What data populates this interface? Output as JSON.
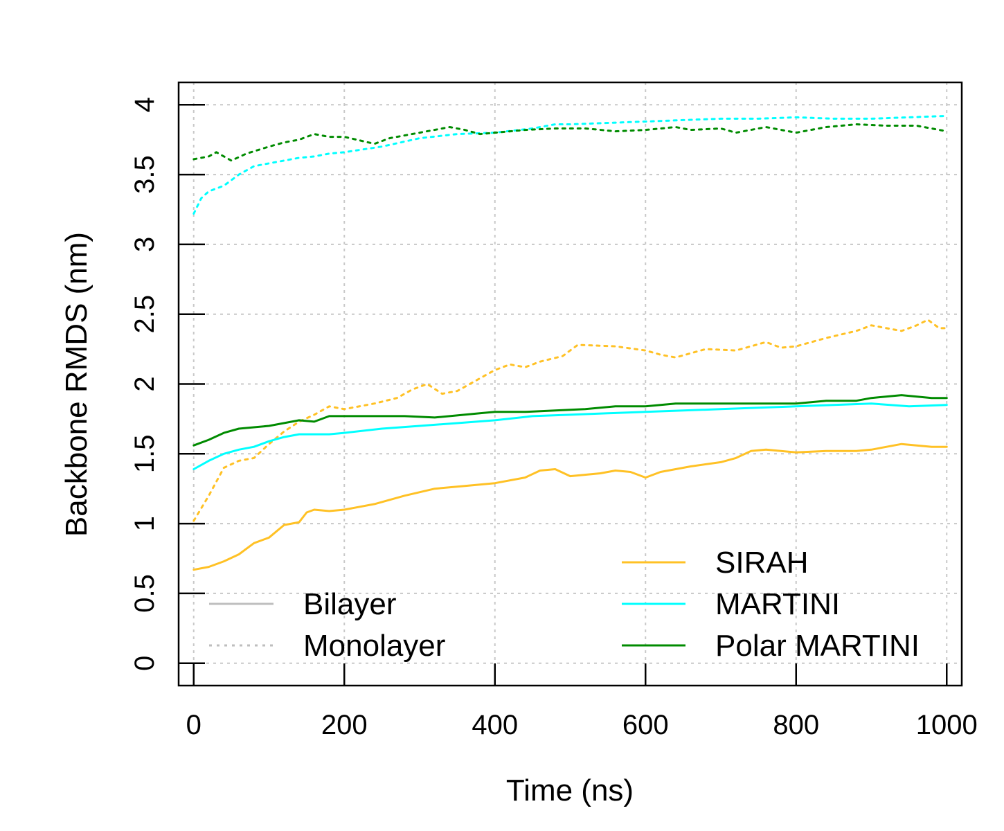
{
  "chart_data": {
    "type": "line",
    "xlabel": "Time (ns)",
    "ylabel": "Backbone RMDS (nm)",
    "xlim": [
      -20,
      1020
    ],
    "ylim": [
      -0.16,
      4.16
    ],
    "xticks": [
      0,
      200,
      400,
      600,
      800,
      1000
    ],
    "yticks": [
      0,
      0.5,
      1,
      1.5,
      2,
      2.5,
      3,
      3.5,
      4
    ],
    "grid": true,
    "legends": [
      {
        "placement": "bottom-left",
        "entries": [
          {
            "label": "Bilayer",
            "style": "solid",
            "color": "#bebebe"
          },
          {
            "label": "Monolayer",
            "style": "dotted",
            "color": "#bebebe"
          }
        ]
      },
      {
        "placement": "bottom-right",
        "entries": [
          {
            "label": "SIRAH",
            "style": "solid",
            "color": "#ffc125"
          },
          {
            "label": "MARTINI",
            "style": "solid",
            "color": "#00ffff"
          },
          {
            "label": "Polar MARTINI",
            "style": "solid",
            "color": "#008b00"
          }
        ]
      }
    ],
    "series": [
      {
        "model": "SIRAH",
        "layer": "Bilayer",
        "color": "#ffc125",
        "style": "solid",
        "points": [
          [
            0,
            0.67
          ],
          [
            20,
            0.69
          ],
          [
            40,
            0.73
          ],
          [
            60,
            0.78
          ],
          [
            80,
            0.86
          ],
          [
            100,
            0.9
          ],
          [
            120,
            0.99
          ],
          [
            140,
            1.01
          ],
          [
            150,
            1.08
          ],
          [
            160,
            1.1
          ],
          [
            180,
            1.09
          ],
          [
            200,
            1.1
          ],
          [
            240,
            1.14
          ],
          [
            280,
            1.2
          ],
          [
            320,
            1.25
          ],
          [
            360,
            1.27
          ],
          [
            400,
            1.29
          ],
          [
            440,
            1.33
          ],
          [
            460,
            1.38
          ],
          [
            480,
            1.39
          ],
          [
            500,
            1.34
          ],
          [
            540,
            1.36
          ],
          [
            560,
            1.38
          ],
          [
            580,
            1.37
          ],
          [
            600,
            1.33
          ],
          [
            620,
            1.37
          ],
          [
            660,
            1.41
          ],
          [
            700,
            1.44
          ],
          [
            720,
            1.47
          ],
          [
            740,
            1.52
          ],
          [
            760,
            1.53
          ],
          [
            800,
            1.51
          ],
          [
            840,
            1.52
          ],
          [
            880,
            1.52
          ],
          [
            900,
            1.53
          ],
          [
            940,
            1.57
          ],
          [
            960,
            1.56
          ],
          [
            980,
            1.55
          ],
          [
            1000,
            1.55
          ]
        ]
      },
      {
        "model": "SIRAH",
        "layer": "Monolayer",
        "color": "#ffc125",
        "style": "dotted",
        "points": [
          [
            0,
            1.02
          ],
          [
            20,
            1.2
          ],
          [
            40,
            1.4
          ],
          [
            60,
            1.45
          ],
          [
            80,
            1.47
          ],
          [
            100,
            1.57
          ],
          [
            120,
            1.66
          ],
          [
            140,
            1.73
          ],
          [
            160,
            1.78
          ],
          [
            180,
            1.84
          ],
          [
            200,
            1.82
          ],
          [
            240,
            1.86
          ],
          [
            270,
            1.9
          ],
          [
            290,
            1.96
          ],
          [
            310,
            2.0
          ],
          [
            330,
            1.93
          ],
          [
            350,
            1.95
          ],
          [
            380,
            2.04
          ],
          [
            400,
            2.1
          ],
          [
            420,
            2.14
          ],
          [
            440,
            2.12
          ],
          [
            460,
            2.16
          ],
          [
            490,
            2.2
          ],
          [
            510,
            2.28
          ],
          [
            560,
            2.27
          ],
          [
            600,
            2.24
          ],
          [
            620,
            2.21
          ],
          [
            640,
            2.19
          ],
          [
            660,
            2.22
          ],
          [
            680,
            2.25
          ],
          [
            720,
            2.24
          ],
          [
            760,
            2.3
          ],
          [
            780,
            2.26
          ],
          [
            800,
            2.27
          ],
          [
            840,
            2.33
          ],
          [
            880,
            2.38
          ],
          [
            900,
            2.42
          ],
          [
            920,
            2.4
          ],
          [
            940,
            2.38
          ],
          [
            960,
            2.42
          ],
          [
            975,
            2.46
          ],
          [
            990,
            2.4
          ],
          [
            1000,
            2.4
          ]
        ]
      },
      {
        "model": "MARTINI",
        "layer": "Bilayer",
        "color": "#00ffff",
        "style": "solid",
        "points": [
          [
            0,
            1.39
          ],
          [
            20,
            1.45
          ],
          [
            40,
            1.5
          ],
          [
            60,
            1.53
          ],
          [
            80,
            1.55
          ],
          [
            100,
            1.59
          ],
          [
            120,
            1.62
          ],
          [
            140,
            1.64
          ],
          [
            160,
            1.64
          ],
          [
            180,
            1.64
          ],
          [
            200,
            1.65
          ],
          [
            250,
            1.68
          ],
          [
            300,
            1.7
          ],
          [
            350,
            1.72
          ],
          [
            400,
            1.74
          ],
          [
            450,
            1.77
          ],
          [
            500,
            1.78
          ],
          [
            550,
            1.79
          ],
          [
            600,
            1.8
          ],
          [
            650,
            1.81
          ],
          [
            700,
            1.82
          ],
          [
            750,
            1.83
          ],
          [
            800,
            1.84
          ],
          [
            850,
            1.85
          ],
          [
            900,
            1.86
          ],
          [
            950,
            1.84
          ],
          [
            1000,
            1.85
          ]
        ]
      },
      {
        "model": "Polar MARTINI",
        "layer": "Bilayer",
        "color": "#008b00",
        "style": "solid",
        "points": [
          [
            0,
            1.56
          ],
          [
            20,
            1.6
          ],
          [
            40,
            1.65
          ],
          [
            60,
            1.68
          ],
          [
            80,
            1.69
          ],
          [
            100,
            1.7
          ],
          [
            140,
            1.74
          ],
          [
            160,
            1.73
          ],
          [
            180,
            1.77
          ],
          [
            200,
            1.77
          ],
          [
            240,
            1.77
          ],
          [
            280,
            1.77
          ],
          [
            320,
            1.76
          ],
          [
            340,
            1.77
          ],
          [
            380,
            1.79
          ],
          [
            400,
            1.8
          ],
          [
            440,
            1.8
          ],
          [
            480,
            1.81
          ],
          [
            520,
            1.82
          ],
          [
            560,
            1.84
          ],
          [
            600,
            1.84
          ],
          [
            640,
            1.86
          ],
          [
            680,
            1.86
          ],
          [
            720,
            1.86
          ],
          [
            760,
            1.86
          ],
          [
            800,
            1.86
          ],
          [
            840,
            1.88
          ],
          [
            880,
            1.88
          ],
          [
            900,
            1.9
          ],
          [
            940,
            1.92
          ],
          [
            980,
            1.9
          ],
          [
            1000,
            1.9
          ]
        ]
      },
      {
        "model": "MARTINI",
        "layer": "Monolayer",
        "color": "#00ffff",
        "style": "dotted",
        "points": [
          [
            0,
            3.22
          ],
          [
            10,
            3.33
          ],
          [
            20,
            3.38
          ],
          [
            40,
            3.42
          ],
          [
            60,
            3.5
          ],
          [
            80,
            3.56
          ],
          [
            100,
            3.58
          ],
          [
            120,
            3.6
          ],
          [
            140,
            3.62
          ],
          [
            160,
            3.63
          ],
          [
            180,
            3.65
          ],
          [
            200,
            3.66
          ],
          [
            250,
            3.7
          ],
          [
            300,
            3.76
          ],
          [
            350,
            3.79
          ],
          [
            400,
            3.8
          ],
          [
            450,
            3.83
          ],
          [
            480,
            3.86
          ],
          [
            500,
            3.86
          ],
          [
            550,
            3.87
          ],
          [
            600,
            3.88
          ],
          [
            650,
            3.89
          ],
          [
            700,
            3.9
          ],
          [
            750,
            3.9
          ],
          [
            800,
            3.91
          ],
          [
            850,
            3.9
          ],
          [
            900,
            3.9
          ],
          [
            950,
            3.91
          ],
          [
            1000,
            3.92
          ]
        ]
      },
      {
        "model": "Polar MARTINI",
        "layer": "Monolayer",
        "color": "#008b00",
        "style": "dotted",
        "points": [
          [
            0,
            3.61
          ],
          [
            20,
            3.63
          ],
          [
            30,
            3.66
          ],
          [
            50,
            3.6
          ],
          [
            70,
            3.65
          ],
          [
            100,
            3.7
          ],
          [
            120,
            3.73
          ],
          [
            140,
            3.75
          ],
          [
            160,
            3.79
          ],
          [
            180,
            3.77
          ],
          [
            200,
            3.77
          ],
          [
            240,
            3.72
          ],
          [
            260,
            3.76
          ],
          [
            300,
            3.8
          ],
          [
            340,
            3.84
          ],
          [
            360,
            3.82
          ],
          [
            380,
            3.79
          ],
          [
            400,
            3.8
          ],
          [
            440,
            3.82
          ],
          [
            480,
            3.83
          ],
          [
            520,
            3.83
          ],
          [
            560,
            3.81
          ],
          [
            600,
            3.82
          ],
          [
            640,
            3.84
          ],
          [
            660,
            3.82
          ],
          [
            700,
            3.83
          ],
          [
            720,
            3.8
          ],
          [
            760,
            3.84
          ],
          [
            800,
            3.8
          ],
          [
            840,
            3.84
          ],
          [
            880,
            3.86
          ],
          [
            920,
            3.85
          ],
          [
            960,
            3.85
          ],
          [
            1000,
            3.81
          ]
        ]
      }
    ]
  }
}
